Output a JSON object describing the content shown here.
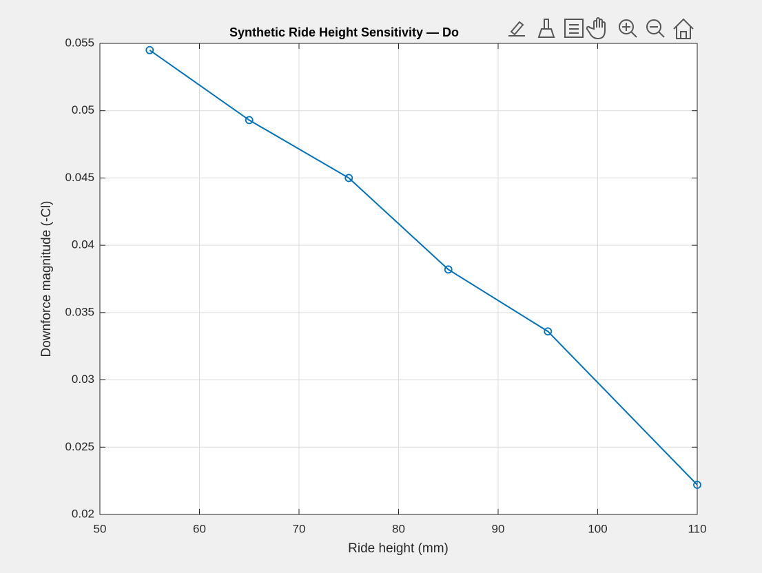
{
  "chart_data": {
    "type": "line",
    "title": "Synthetic Ride Height Sensitivity — Do",
    "x_label": "Ride height (mm)",
    "y_label": "Downforce magnitude (-Cl)",
    "x": [
      55,
      65,
      75,
      85,
      95,
      110
    ],
    "series": [
      {
        "color": "#0072bd",
        "values": [
          0.0545,
          0.0493,
          0.045,
          0.0382,
          0.0336,
          0.0222
        ]
      }
    ],
    "xlim": [
      50,
      110
    ],
    "xticks": [
      50,
      60,
      70,
      80,
      90,
      100,
      110
    ],
    "ylim": [
      0.02,
      0.055
    ],
    "yticks": [
      0.02,
      0.025,
      0.03,
      0.035,
      0.04,
      0.045,
      0.05,
      0.055
    ],
    "grid": true,
    "marker": "circle"
  }
}
